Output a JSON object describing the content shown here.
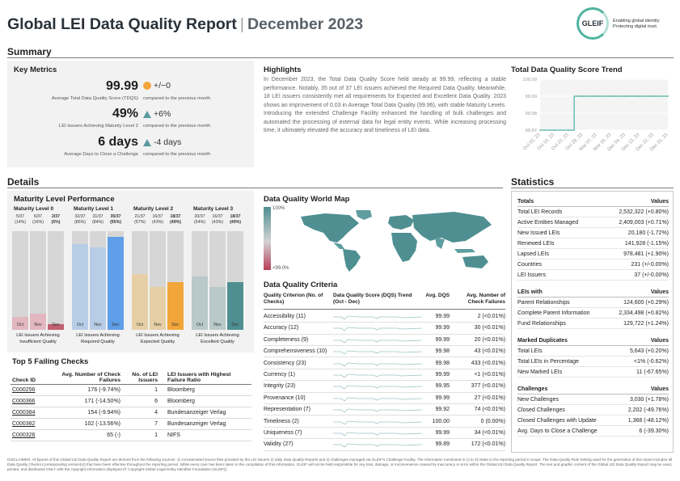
{
  "header": {
    "title": "Global LEI Data Quality Report",
    "separator": "|",
    "date": "December 2023",
    "logo_word": "GLEIF",
    "logo_tagline_1": "Enabling global identity",
    "logo_tagline_2": "Protecting digital trust."
  },
  "summary": {
    "heading": "Summary",
    "key_metrics": {
      "title": "Key Metrics",
      "items": [
        {
          "value": "99.99",
          "label": "Average Total Data Quality Score (TDQS)",
          "delta": "+/−0",
          "indicator": "circle",
          "compare": "compared to the previous month"
        },
        {
          "value": "49%",
          "label": "LEI Issuers Achieving Maturity Level 2",
          "delta": "+6%",
          "indicator": "triangle-up",
          "compare": "compared to the previous month"
        },
        {
          "value": "6 days",
          "label": "Average Days to Close a Challenge",
          "delta": "-4 days",
          "indicator": "triangle-up",
          "compare": "compared to the previous month"
        }
      ]
    },
    "highlights": {
      "title": "Highlights",
      "text": "In December 2023, the Total Data Quality Score held steady at 99.99, reflecting a stable performance. Notably, 35 out of 37 LEI issuers achieved the Required Data Quality. Meanwhile, 18 LEI issuers consistently met all requirements for Expected and Excellent Data Quality. 2023 shows an improvement of 0.03 in Average Total Data Quality (99.96), with stable Maturity Levels. Introducing the extended Challenge Facility enhanced the handling of bulk challenges and automated the processing of external data for legal entity events. While increasing processing time, it ultimately elevated the accuracy and timeliness of LEI data."
    },
    "trend": {
      "title": "Total Data Quality Score Trend"
    }
  },
  "chart_data": [
    {
      "type": "line",
      "title": "Total Data Quality Score Trend",
      "x": [
        "Oct 02, 23",
        "Oct 15, 23",
        "Oct 22, 23",
        "Oct 29, 23",
        "Nov 07, 23",
        "Nov 16, 23",
        "Dec 04, 23",
        "Dec 13, 23",
        "Dec 22, 23",
        "Dec 31, 23"
      ],
      "values": [
        99.97,
        99.97,
        99.97,
        99.99,
        99.99,
        99.99,
        99.99,
        99.99,
        99.99,
        99.99
      ],
      "yticks": [
        "100.00",
        "99.99",
        "99.98",
        "99.97"
      ],
      "ylim": [
        99.97,
        100.0
      ],
      "grid": true
    },
    {
      "type": "bar",
      "title": "Maturity Level Performance",
      "categories": [
        "Oct",
        "Nov",
        "Dec"
      ],
      "ymax": 37,
      "panels": [
        {
          "name": "Maturity Level 0",
          "values": [
            5,
            6,
            2
          ],
          "fractions": [
            "5/37",
            "6/37",
            "2/37"
          ],
          "percents": [
            "(14%)",
            "(16%)",
            "(5%)"
          ],
          "caption_1": "LEI Issuers Achieving",
          "caption_2": "Insufficient Quality"
        },
        {
          "name": "Maturity Level 1",
          "values": [
            32,
            31,
            35
          ],
          "fractions": [
            "32/37",
            "31/37",
            "35/37"
          ],
          "percents": [
            "(86%)",
            "(84%)",
            "(95%)"
          ],
          "caption_1": "LEI Issuers Achieving",
          "caption_2": "Required Quality"
        },
        {
          "name": "Maturity Level 2",
          "values": [
            21,
            16,
            18
          ],
          "fractions": [
            "21/37",
            "16/37",
            "18/37"
          ],
          "percents": [
            "(57%)",
            "(43%)",
            "(49%)"
          ],
          "caption_1": "LEI Issuers Achieving",
          "caption_2": "Expected Quality"
        },
        {
          "name": "Maturity Level 3",
          "values": [
            20,
            16,
            18
          ],
          "fractions": [
            "20/37",
            "16/37",
            "18/37"
          ],
          "percents": [
            "(54%)",
            "(43%)",
            "(49%)"
          ],
          "caption_1": "LEI Issuers Achieving",
          "caption_2": "Excellent Quality"
        }
      ]
    }
  ],
  "details": {
    "heading": "Details",
    "maturity_title": "Maturity Level Performance",
    "world_map": {
      "title": "Data Quality World Map",
      "legend_top": "100%",
      "legend_bottom": "<99.0%"
    },
    "criteria": {
      "title": "Data Quality Criteria",
      "headers": [
        "Quality Criterion (No. of Checks)",
        "Data Quality Score (DQS) Trend (Oct - Dec)",
        "Avg. DQS",
        "Avg. Number of Check Failures"
      ],
      "rows": [
        {
          "name": "Accessibility (11)",
          "dqs": "99.99",
          "failures": "2 (<0.01%)"
        },
        {
          "name": "Accuracy (12)",
          "dqs": "99.99",
          "failures": "30 (<0.01%)"
        },
        {
          "name": "Completeness (9)",
          "dqs": "99.99",
          "failures": "20 (<0.01%)"
        },
        {
          "name": "Comprehensiveness (10)",
          "dqs": "99.98",
          "failures": "43 (<0.01%)"
        },
        {
          "name": "Consistency (23)",
          "dqs": "99.98",
          "failures": "433 (<0.01%)"
        },
        {
          "name": "Currency (1)",
          "dqs": "99.99",
          "failures": "<1 (<0.01%)"
        },
        {
          "name": "Integrity (23)",
          "dqs": "99.95",
          "failures": "377 (<0.01%)"
        },
        {
          "name": "Provenance (10)",
          "dqs": "99.99",
          "failures": "27 (<0.01%)"
        },
        {
          "name": "Representation (7)",
          "dqs": "99.92",
          "failures": "74 (<0.01%)"
        },
        {
          "name": "Timeliness (2)",
          "dqs": "100.00",
          "failures": "0 (0.00%)"
        },
        {
          "name": "Uniqueness (7)",
          "dqs": "99.99",
          "failures": "34 (<0.01%)"
        },
        {
          "name": "Validity (27)",
          "dqs": "99.89",
          "failures": "172 (<0.01%)"
        }
      ]
    },
    "failing": {
      "title": "Top 5 Failing Checks",
      "headers": [
        "Check ID",
        "Avg. Number of Check Failures",
        "No. of LEI Issuers",
        "LEI Issuers with Highest Failure Ratio"
      ],
      "rows": [
        {
          "id": "C000256",
          "failures": "176 (-9.74%)",
          "issuers": "1",
          "highest": "Bloomberg"
        },
        {
          "id": "C000366",
          "failures": "171 (-14.50%)",
          "issuers": "6",
          "highest": "Bloomberg"
        },
        {
          "id": "C000384",
          "failures": "154 (-9.94%)",
          "issuers": "4",
          "highest": "Bundesanzeiger Verlag"
        },
        {
          "id": "C000382",
          "failures": "102 (-13.56%)",
          "issuers": "7",
          "highest": "Bundesanzeiger Verlag"
        },
        {
          "id": "C000326",
          "failures": "65 (-)",
          "issuers": "1",
          "highest": "NIFS"
        }
      ]
    }
  },
  "statistics": {
    "heading": "Statistics",
    "groups": [
      {
        "title": "Totals",
        "values_label": "Values",
        "rows": [
          {
            "label": "Total LEI Records",
            "value": "2,532,322 (+0.80%)"
          },
          {
            "label": "Active Entities Managed",
            "value": "2,409,003 (+0.71%)"
          },
          {
            "label": "New Issued LEIs",
            "value": "20,180 (-1.72%)"
          },
          {
            "label": "Renewed LEIs",
            "value": "141,928 (-1.15%)"
          },
          {
            "label": "Lapsed LEIs",
            "value": "978,481 (+1.90%)"
          },
          {
            "label": "Countries",
            "value": "231 (+/-0.00%)"
          },
          {
            "label": "LEI Issuers",
            "value": "37 (+/-0.00%)"
          }
        ]
      },
      {
        "title": "LEIs with",
        "values_label": "Values",
        "rows": [
          {
            "label": "Parent Relationships",
            "value": "124,600 (+0.29%)"
          },
          {
            "label": "Complete Parent Information",
            "value": "2,334,498 (+0.82%)"
          },
          {
            "label": "Fund Relationships",
            "value": "129,722 (+1.24%)"
          }
        ]
      },
      {
        "title": "Marked Duplicates",
        "values_label": "Values",
        "rows": [
          {
            "label": "Total LEIs",
            "value": "5,643 (+0.20%)"
          },
          {
            "label": "Total LEIs in Percentage",
            "value": "<1% (-0.62%)"
          },
          {
            "label": "New Marked LEIs",
            "value": "11 (-67.65%)"
          }
        ]
      },
      {
        "title": "Challenges",
        "values_label": "Values",
        "rows": [
          {
            "label": "New Challenges",
            "value": "3,030 (+1.78%)"
          },
          {
            "label": "Closed Challenges",
            "value": "2,202 (-49.76%)"
          },
          {
            "label": "Closed Challenges with Update",
            "value": "1,368 (-48.12%)"
          },
          {
            "label": "Avg. Days to Close a Challenge",
            "value": "6 (-39.30%)"
          }
        ]
      }
    ]
  },
  "disclaimer": "DISCLAIMER: All figures of this Global LEI Data Quality Report are derived from the following sources: 1) concatenated source files provided by the LEI Issuers 2) daily Data Quality Reports and 3) challenges managed via GLEIF's Challenge Facility. The information mentioned in 1) to 3) relate to the reporting period in scope. The Data Quality Rule Setting used for the generation of this report includes all Data Quality Checks (corresponding version(s)) that have been effective throughout the reporting period. While every care has been taken in the compilation of this information, GLEIF will not be held responsible for any loss, damage, or inconvenience caused by inaccuracy or error within the Global LEI Data Quality Report. The text and graphic content of the Global LEI Data Quality Report may be used, printed, and distributed ONLY with the copyright information displayed (© Copyright Global Legal Entity Identifier Foundation (GLEIF)).",
  "colors": {
    "accent_teal": "#4f8f92",
    "orange": "#f2a63a",
    "blue": "#5f9ee8",
    "light_blue": "#b7cde6",
    "tan": "#e6cfa6",
    "grey_teal": "#b9c8c9",
    "red": "#c06070",
    "grey_bar": "#d6d6d6"
  }
}
